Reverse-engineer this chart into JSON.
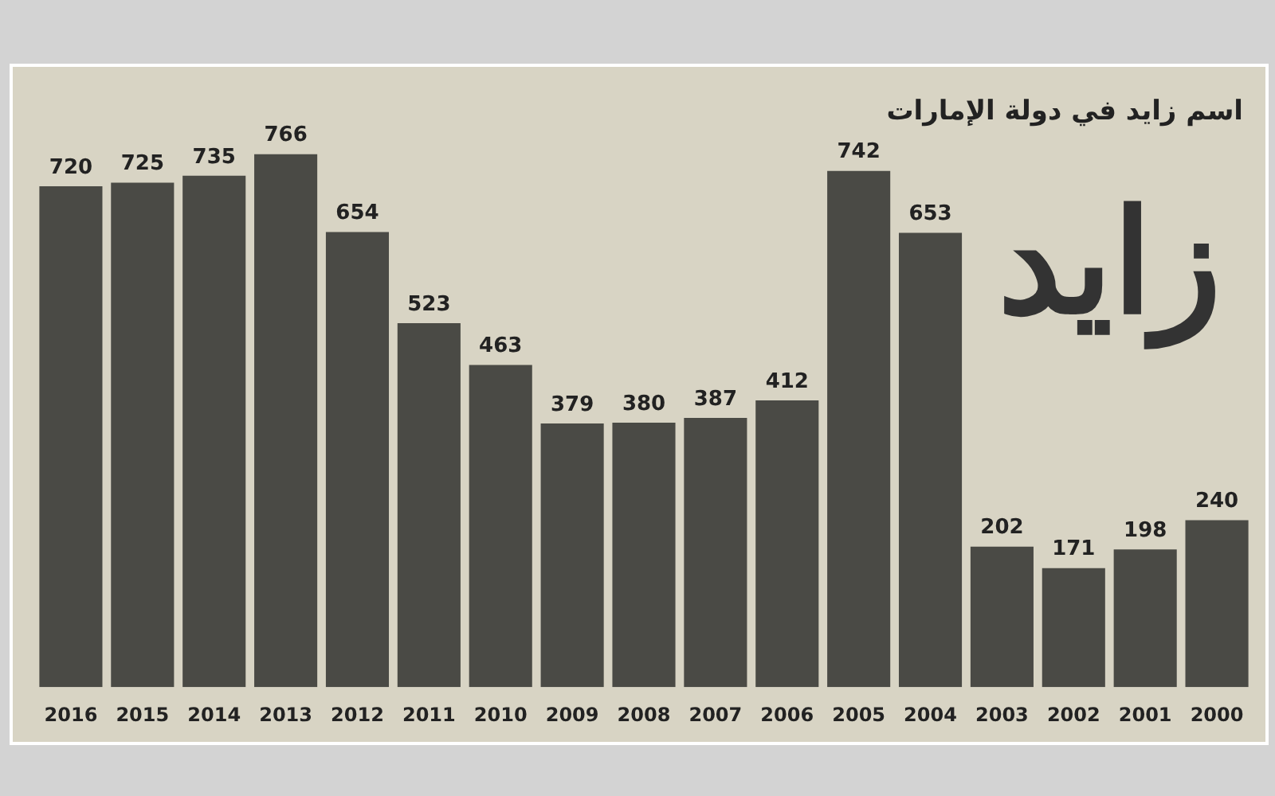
{
  "chart_data": {
    "type": "bar",
    "title": "اسم زايد في دولة الإمارات",
    "annotations": [
      "زايد"
    ],
    "categories": [
      "2016",
      "2015",
      "2014",
      "2013",
      "2012",
      "2011",
      "2010",
      "2009",
      "2008",
      "2007",
      "2006",
      "2005",
      "2004",
      "2003",
      "2002",
      "2001",
      "2000"
    ],
    "values": [
      720,
      725,
      735,
      766,
      654,
      523,
      463,
      379,
      380,
      387,
      412,
      742,
      653,
      202,
      171,
      198,
      240
    ],
    "color": "#4a4a45",
    "data_labels": true
  }
}
